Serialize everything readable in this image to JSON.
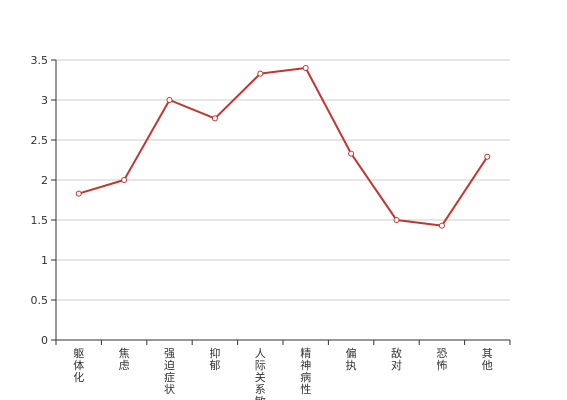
{
  "chart_data": {
    "type": "line",
    "title": "",
    "xlabel": "",
    "ylabel": "",
    "categories": [
      "躯体化",
      "焦虑",
      "强迫症状",
      "抑郁",
      "人际关系敏感",
      "精神病性",
      "偏执",
      "敌对",
      "恐怖",
      "其他"
    ],
    "series": [
      {
        "values": [
          1.83,
          2.0,
          3.0,
          2.77,
          3.33,
          3.4,
          2.33,
          1.5,
          1.43,
          2.29
        ]
      }
    ],
    "ylim": [
      0,
      3.5
    ],
    "yticks": [
      "0",
      "0.5",
      "1",
      "1.5",
      "2",
      "2.5",
      "3",
      "3.5"
    ],
    "grid": true,
    "legend": "none",
    "colors": {
      "line": "#c23531",
      "grid": "#cccccc",
      "axis": "#333333",
      "text": "#333333"
    }
  }
}
